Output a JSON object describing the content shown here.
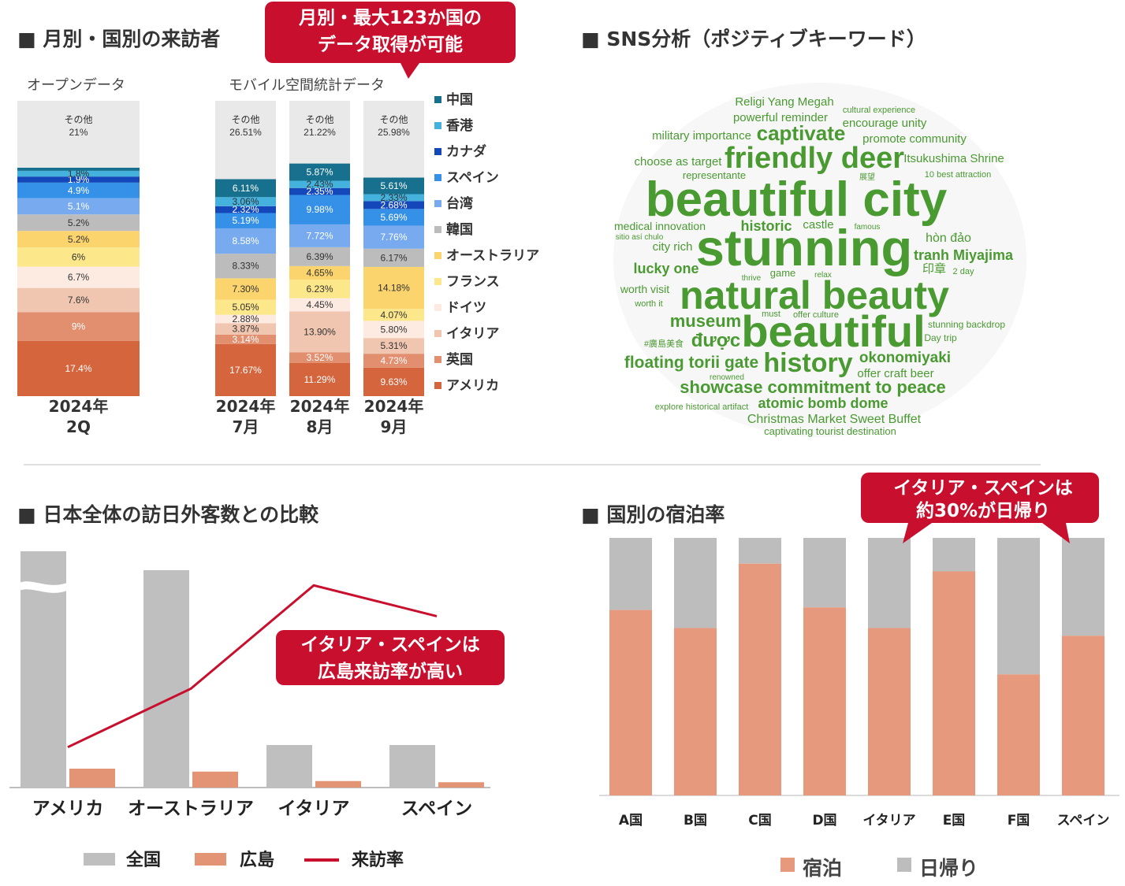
{
  "sections": {
    "monthly": {
      "heading": "■ 月別・国別の来訪者",
      "open_label": "オープンデータ",
      "mobile_label": "モバイル空間統計データ",
      "callout": [
        "月別・最大123か国の",
        "データ取得が可能"
      ]
    },
    "sns": {
      "heading": "■ SNS分析（ポジティブキーワード）"
    },
    "compare": {
      "heading": "■ 日本全体の訪日外客数との比較",
      "callout": [
        "イタリア・スペインは",
        "広島来訪率が高い"
      ]
    },
    "stay": {
      "heading": "■ 国別の宿泊率",
      "callout": [
        "イタリア・スペインは",
        "約30%が日帰り"
      ]
    }
  },
  "colors": {
    "中国": "#17708d",
    "香港": "#44b2dd",
    "カナダ": "#1447b9",
    "スペイン": "#3590e8",
    "台湾": "#78aaf0",
    "韓国": "#bcbcbc",
    "オーストラリア": "#fcd46e",
    "フランス": "#fce78a",
    "ドイツ": "#fdebe2",
    "イタリア": "#f0c6b1",
    "英国": "#e28f70",
    "アメリカ": "#d4653d",
    "その他": "#e9e9e9",
    "gray_bar": "#bfbfbf",
    "salmon_bar": "#e39474",
    "line": "#c8102e",
    "callout": "#c8102e",
    "stay_orange": "#e6997c",
    "stay_gray": "#bdbdbd"
  },
  "chart_data": [
    {
      "id": "monthly_visitors",
      "type": "bar",
      "stacked": true,
      "title": "月別・国別の来訪者",
      "legend": [
        "中国",
        "香港",
        "カナダ",
        "スペイン",
        "台湾",
        "韓国",
        "オーストラリア",
        "フランス",
        "ドイツ",
        "イタリア",
        "英国",
        "アメリカ"
      ],
      "bars": [
        {
          "label": [
            "2024年",
            "2Q"
          ],
          "source": "オープンデータ",
          "segments": [
            {
              "name": "アメリカ",
              "value": 17.4,
              "text": "17.4%"
            },
            {
              "name": "英国",
              "value": 9.0,
              "text": "9%"
            },
            {
              "name": "イタリア",
              "value": 7.6,
              "text": "7.6%"
            },
            {
              "name": "ドイツ",
              "value": 6.7,
              "text": "6.7%"
            },
            {
              "name": "フランス",
              "value": 6.0,
              "text": "6%"
            },
            {
              "name": "オーストラリア",
              "value": 5.2,
              "text": "5.2%"
            },
            {
              "name": "韓国",
              "value": 5.2,
              "text": "5.2%"
            },
            {
              "name": "台湾",
              "value": 5.1,
              "text": "5.1%"
            },
            {
              "name": "スペイン",
              "value": 4.9,
              "text": "4.9%"
            },
            {
              "name": "カナダ",
              "value": 1.9,
              "text": "1.9%"
            },
            {
              "name": "香港",
              "value": 1.8,
              "text": "1.8%"
            },
            {
              "name": "中国",
              "value": 1.0,
              "text": ""
            },
            {
              "name": "その他",
              "value": 21.0,
              "text": "その他\n21%"
            }
          ]
        },
        {
          "label": [
            "2024年",
            "7月"
          ],
          "source": "モバイル空間統計データ",
          "segments": [
            {
              "name": "アメリカ",
              "value": 17.67,
              "text": "17.67%"
            },
            {
              "name": "英国",
              "value": 3.14,
              "text": "3.14%"
            },
            {
              "name": "イタリア",
              "value": 3.87,
              "text": "3.87%"
            },
            {
              "name": "ドイツ",
              "value": 2.88,
              "text": "2.88%"
            },
            {
              "name": "フランス",
              "value": 5.05,
              "text": "5.05%"
            },
            {
              "name": "オーストラリア",
              "value": 7.3,
              "text": "7.30%"
            },
            {
              "name": "韓国",
              "value": 8.33,
              "text": "8.33%"
            },
            {
              "name": "台湾",
              "value": 8.58,
              "text": "8.58%"
            },
            {
              "name": "スペイン",
              "value": 5.19,
              "text": "5.19%"
            },
            {
              "name": "カナダ",
              "value": 2.32,
              "text": "2.32%"
            },
            {
              "name": "香港",
              "value": 3.06,
              "text": "3.06%"
            },
            {
              "name": "中国",
              "value": 6.11,
              "text": "6.11%"
            },
            {
              "name": "その他",
              "value": 26.51,
              "text": "その他\n26.51%"
            }
          ]
        },
        {
          "label": [
            "2024年",
            "8月"
          ],
          "source": "モバイル空間統計データ",
          "segments": [
            {
              "name": "アメリカ",
              "value": 11.29,
              "text": "11.29%"
            },
            {
              "name": "英国",
              "value": 3.52,
              "text": "3.52%"
            },
            {
              "name": "イタリア",
              "value": 13.9,
              "text": "13.90%"
            },
            {
              "name": "ドイツ",
              "value": 4.45,
              "text": "4.45%"
            },
            {
              "name": "フランス",
              "value": 6.23,
              "text": "6.23%"
            },
            {
              "name": "オーストラリア",
              "value": 4.65,
              "text": "4.65%"
            },
            {
              "name": "韓国",
              "value": 6.39,
              "text": "6.39%"
            },
            {
              "name": "台湾",
              "value": 7.72,
              "text": "7.72%"
            },
            {
              "name": "スペイン",
              "value": 9.98,
              "text": "9.98%"
            },
            {
              "name": "カナダ",
              "value": 2.35,
              "text": "2.35%"
            },
            {
              "name": "香港",
              "value": 2.43,
              "text": "2.43%"
            },
            {
              "name": "中国",
              "value": 5.87,
              "text": "5.87%"
            },
            {
              "name": "その他",
              "value": 21.22,
              "text": "その他\n21.22%"
            }
          ]
        },
        {
          "label": [
            "2024年",
            "9月"
          ],
          "source": "モバイル空間統計データ",
          "segments": [
            {
              "name": "アメリカ",
              "value": 9.63,
              "text": "9.63%"
            },
            {
              "name": "英国",
              "value": 4.73,
              "text": "4.73%"
            },
            {
              "name": "イタリア",
              "value": 5.31,
              "text": "5.31%"
            },
            {
              "name": "ドイツ",
              "value": 5.8,
              "text": "5.80%"
            },
            {
              "name": "フランス",
              "value": 4.07,
              "text": "4.07%"
            },
            {
              "name": "オーストラリア",
              "value": 14.18,
              "text": "14.18%"
            },
            {
              "name": "韓国",
              "value": 6.17,
              "text": "6.17%"
            },
            {
              "name": "台湾",
              "value": 7.76,
              "text": "7.76%"
            },
            {
              "name": "スペイン",
              "value": 5.69,
              "text": "5.69%"
            },
            {
              "name": "カナダ",
              "value": 2.68,
              "text": "2.68%"
            },
            {
              "name": "香港",
              "value": 2.33,
              "text": "2.33%"
            },
            {
              "name": "中国",
              "value": 5.61,
              "text": "5.61%"
            },
            {
              "name": "その他",
              "value": 25.98,
              "text": "その他\n25.98%"
            }
          ]
        }
      ]
    },
    {
      "id": "wordcloud",
      "type": "wordcloud",
      "title": "SNS分析（ポジティブキーワード）",
      "words": [
        {
          "text": "beautiful city",
          "weight": 10
        },
        {
          "text": "stunning",
          "weight": 10
        },
        {
          "text": "natural beauty",
          "weight": 9
        },
        {
          "text": "beautiful",
          "weight": 9
        },
        {
          "text": "friendly deer",
          "weight": 7
        },
        {
          "text": "history",
          "weight": 6
        },
        {
          "text": "captivate",
          "weight": 5
        },
        {
          "text": "museum",
          "weight": 5
        },
        {
          "text": "được",
          "weight": 5
        },
        {
          "text": "floating torii gate",
          "weight": 4
        },
        {
          "text": "showcase commitment to peace",
          "weight": 4
        },
        {
          "text": "okonomiyaki",
          "weight": 4
        },
        {
          "text": "tranh Miyajima",
          "weight": 4
        },
        {
          "text": "historic",
          "weight": 4
        },
        {
          "text": "atomic bomb dome",
          "weight": 3.5
        },
        {
          "text": "Religi Yang Megah",
          "weight": 3
        },
        {
          "text": "powerful reminder",
          "weight": 3
        },
        {
          "text": "encourage unity",
          "weight": 3
        },
        {
          "text": "military importance",
          "weight": 3
        },
        {
          "text": "promote community",
          "weight": 3
        },
        {
          "text": "choose as target",
          "weight": 3
        },
        {
          "text": "Itsukushima Shrine",
          "weight": 3
        },
        {
          "text": "city rich",
          "weight": 3
        },
        {
          "text": "lucky one",
          "weight": 3
        },
        {
          "text": "castle",
          "weight": 3
        },
        {
          "text": "hòn đảo",
          "weight": 3
        },
        {
          "text": "Christmas Market Sweet Buffet",
          "weight": 3
        },
        {
          "text": "offer craft beer",
          "weight": 3
        },
        {
          "text": "medical innovation",
          "weight": 2.5
        },
        {
          "text": "worth visit",
          "weight": 2.5
        },
        {
          "text": "game",
          "weight": 2.5
        },
        {
          "text": "印章",
          "weight": 2.5
        },
        {
          "text": "captivating tourist destination",
          "weight": 2.5
        },
        {
          "text": "representante",
          "weight": 2
        },
        {
          "text": "cultural experience",
          "weight": 2
        },
        {
          "text": "10 best attraction",
          "weight": 2
        },
        {
          "text": "sitio así chulo",
          "weight": 2
        },
        {
          "text": "famous",
          "weight": 2
        },
        {
          "text": "worth it",
          "weight": 2
        },
        {
          "text": "thrive",
          "weight": 2
        },
        {
          "text": "relax",
          "weight": 2
        },
        {
          "text": "must",
          "weight": 2
        },
        {
          "text": "offer culture",
          "weight": 2
        },
        {
          "text": "stunning backdrop",
          "weight": 2
        },
        {
          "text": "Day trip",
          "weight": 2
        },
        {
          "text": "#廣島美食",
          "weight": 2
        },
        {
          "text": "renowned",
          "weight": 2
        },
        {
          "text": "explore historical artifact",
          "weight": 2
        },
        {
          "text": "展望",
          "weight": 2
        },
        {
          "text": "2 day",
          "weight": 2
        }
      ]
    },
    {
      "id": "national_comparison",
      "type": "bar",
      "title": "日本全体の訪日外客数との比較",
      "categories": [
        "アメリカ",
        "オーストラリア",
        "イタリア",
        "スペイン"
      ],
      "series": [
        {
          "name": "全国",
          "values": [
            100,
            92,
            18,
            18
          ],
          "note": "アメリカ bar truncated (axis break)"
        },
        {
          "name": "広島",
          "values": [
            16,
            13.5,
            5.5,
            4.5
          ]
        },
        {
          "name": "来訪率",
          "type": "line",
          "values": [
            18,
            45,
            92,
            78
          ]
        }
      ],
      "legend": [
        "全国",
        "広島",
        "来訪率"
      ],
      "ylim": [
        0,
        100
      ]
    },
    {
      "id": "stay_rate",
      "type": "bar",
      "stacked": true,
      "title": "国別の宿泊率",
      "categories": [
        "A国",
        "B国",
        "C国",
        "D国",
        "イタリア",
        "E国",
        "F国",
        "スペイン"
      ],
      "series": [
        {
          "name": "宿泊",
          "values": [
            72,
            65,
            90,
            73,
            65,
            87,
            47,
            62
          ]
        },
        {
          "name": "日帰り",
          "values": [
            28,
            35,
            10,
            27,
            35,
            13,
            53,
            38
          ]
        }
      ],
      "legend": [
        "宿泊",
        "日帰り"
      ],
      "ylim": [
        0,
        100
      ]
    }
  ]
}
